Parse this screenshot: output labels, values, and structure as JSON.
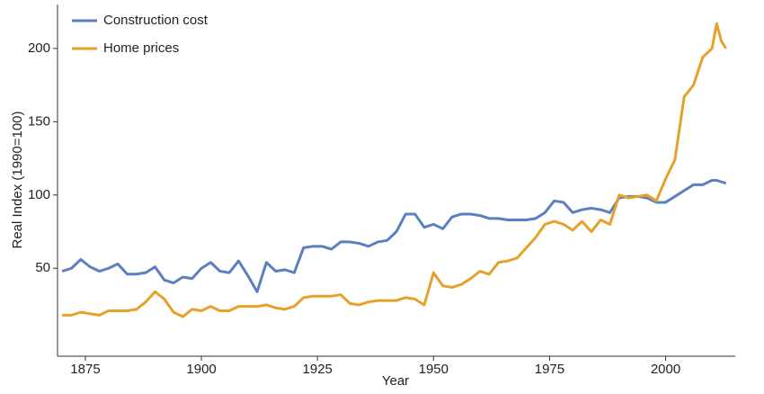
{
  "chart_data": {
    "type": "line",
    "xlabel": "Year",
    "ylabel": "Real Index (1990=100)",
    "x": [
      1870,
      1872,
      1874,
      1876,
      1878,
      1880,
      1882,
      1884,
      1886,
      1888,
      1890,
      1892,
      1894,
      1896,
      1898,
      1900,
      1902,
      1904,
      1906,
      1908,
      1910,
      1912,
      1914,
      1916,
      1918,
      1920,
      1922,
      1924,
      1926,
      1928,
      1930,
      1932,
      1934,
      1936,
      1938,
      1940,
      1942,
      1944,
      1946,
      1948,
      1950,
      1952,
      1954,
      1956,
      1958,
      1960,
      1962,
      1964,
      1966,
      1968,
      1970,
      1972,
      1974,
      1976,
      1978,
      1980,
      1982,
      1984,
      1986,
      1988,
      1990,
      1992,
      1994,
      1996,
      1998,
      2000,
      2002,
      2004,
      2006,
      2008,
      2010,
      2011,
      2012,
      2013
    ],
    "series": [
      {
        "name": "Construction cost",
        "color": "#5b7fbf",
        "values": [
          48,
          50,
          56,
          51,
          48,
          50,
          53,
          46,
          46,
          47,
          51,
          42,
          40,
          44,
          43,
          50,
          54,
          48,
          47,
          55,
          45,
          34,
          54,
          48,
          49,
          47,
          64,
          65,
          65,
          63,
          68,
          68,
          67,
          65,
          68,
          69,
          75,
          87,
          87,
          78,
          80,
          77,
          85,
          87,
          87,
          86,
          84,
          84,
          83,
          83,
          83,
          84,
          88,
          96,
          95,
          88,
          90,
          91,
          90,
          88,
          98,
          99,
          99,
          98,
          95,
          95,
          99,
          103,
          107,
          107,
          110,
          110,
          109,
          108
        ]
      },
      {
        "name": "Home prices",
        "color": "#e5a22a",
        "values": [
          18,
          18,
          20,
          19,
          18,
          21,
          21,
          21,
          22,
          27,
          34,
          29,
          20,
          17,
          22,
          21,
          24,
          21,
          21,
          24,
          24,
          24,
          25,
          23,
          22,
          24,
          30,
          31,
          31,
          31,
          32,
          26,
          25,
          27,
          28,
          28,
          28,
          30,
          29,
          25,
          47,
          38,
          37,
          39,
          43,
          48,
          46,
          54,
          55,
          57,
          64,
          71,
          80,
          82,
          80,
          76,
          82,
          75,
          83,
          80,
          100,
          98,
          99,
          100,
          96,
          111,
          124,
          167,
          175,
          194,
          200,
          217,
          205,
          200
        ]
      }
    ],
    "xlim": [
      1869,
      2015
    ],
    "xticks": [
      1875,
      1900,
      1925,
      1950,
      1975,
      2000
    ],
    "ylim": [
      -10,
      230
    ],
    "yticks": [
      50,
      100,
      150,
      200
    ],
    "grid": false,
    "legend": "upper left"
  }
}
